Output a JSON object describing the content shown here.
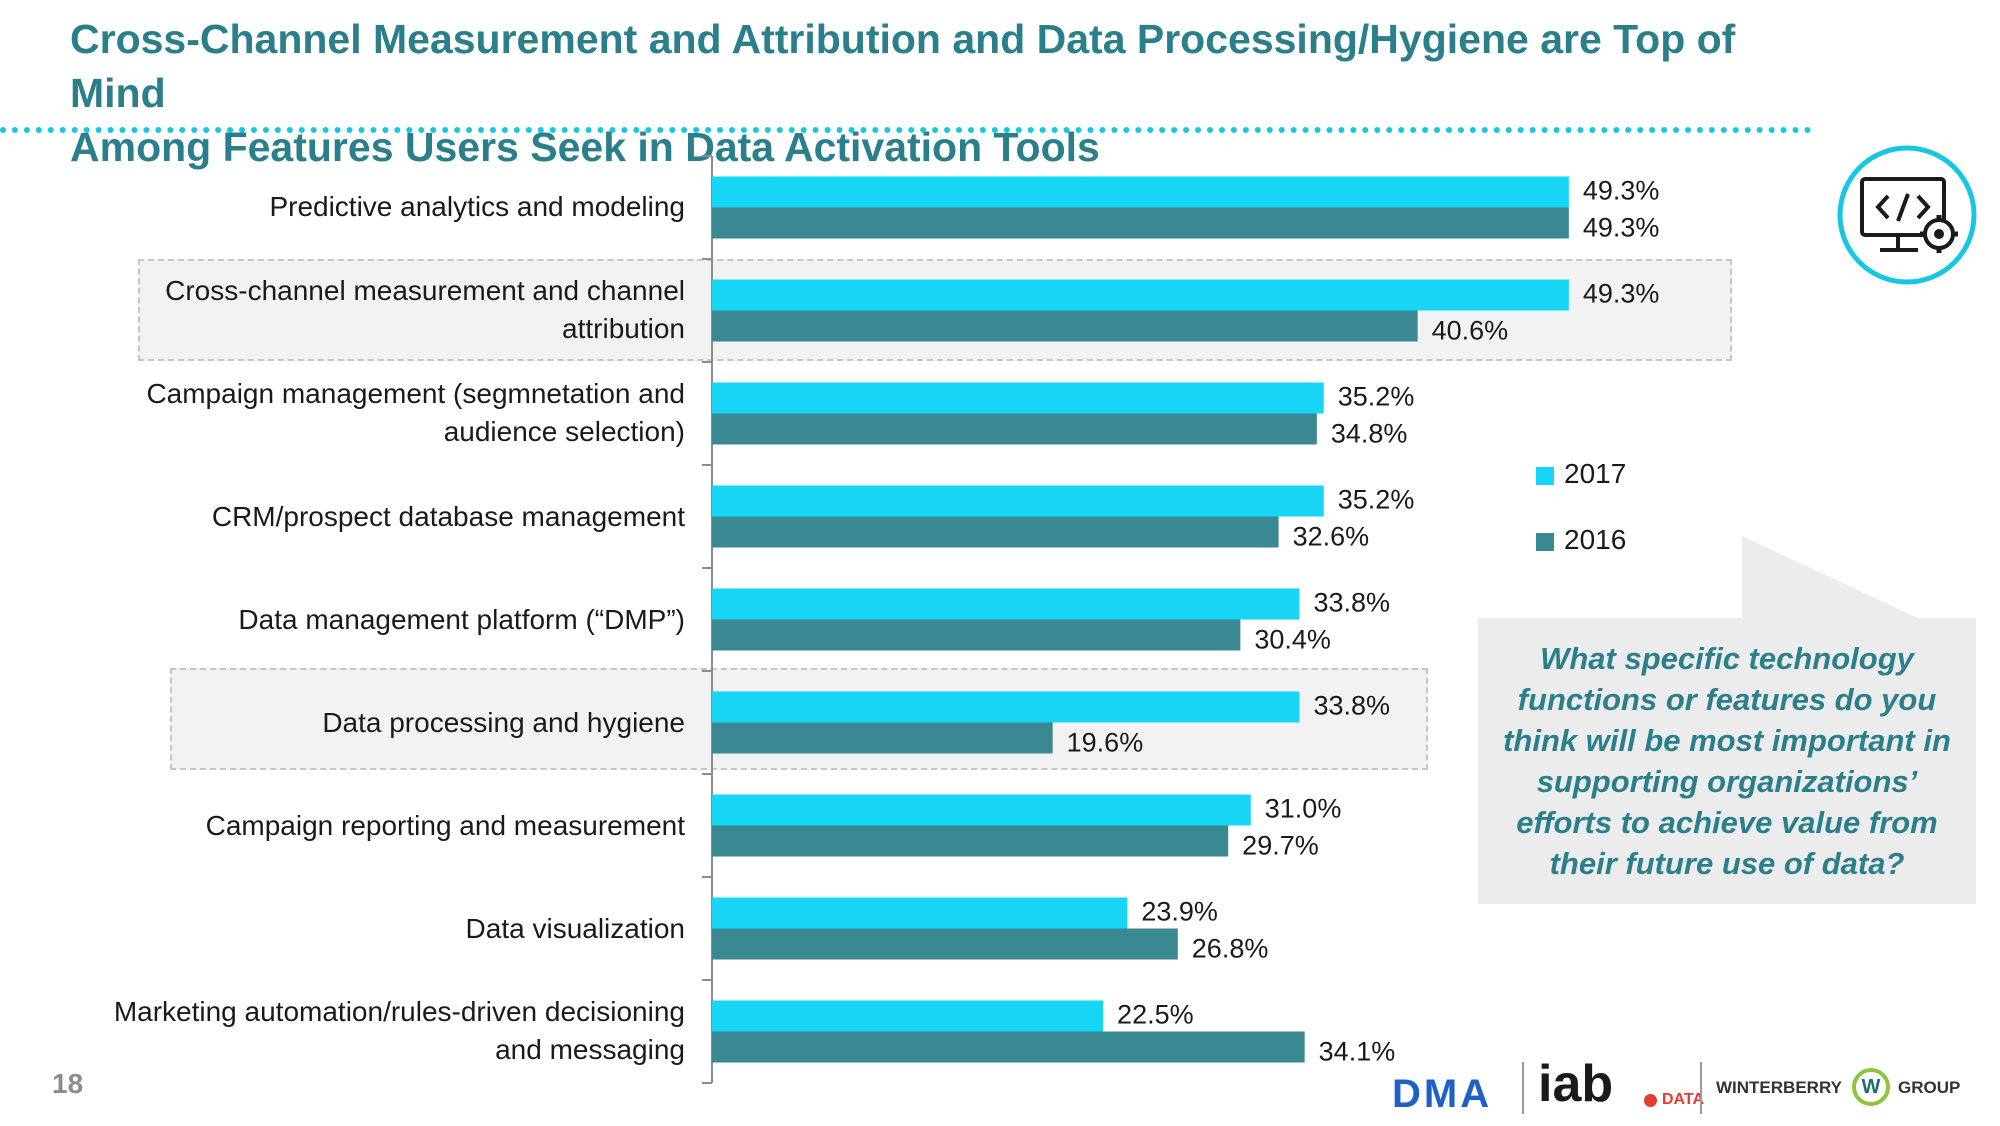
{
  "header": {
    "title_line1": "Cross-Channel Measurement and Attribution and Data Processing/Hygiene are Top of Mind",
    "title_line2": "Among Features Users Seek in Data Activation Tools"
  },
  "colors": {
    "title": "#2b7f8a",
    "series_2017": "#17d5f5",
    "series_2016": "#3a8892",
    "highlight_fill": "#f2f2f2",
    "callout_fill": "#ececec"
  },
  "chart_data": {
    "type": "bar",
    "orientation": "horizontal",
    "categories": [
      [
        "Predictive analytics and modeling"
      ],
      [
        "Cross-channel measurement and channel",
        "attribution"
      ],
      [
        "Campaign management (segmnetation and",
        "audience selection)"
      ],
      [
        "CRM/prospect database management"
      ],
      [
        "Data management platform (“DMP”)"
      ],
      [
        "Data processing and hygiene"
      ],
      [
        "Campaign reporting and measurement"
      ],
      [
        "Data visualization"
      ],
      [
        "Marketing automation/rules-driven decisioning",
        "and messaging"
      ]
    ],
    "series": [
      {
        "name": "2017",
        "values": [
          49.3,
          49.3,
          35.2,
          35.2,
          33.8,
          33.8,
          31.0,
          23.9,
          22.5
        ],
        "labels": [
          "49.3%",
          "49.3%",
          "35.2%",
          "35.2%",
          "33.8%",
          "33.8%",
          "31.0%",
          "23.9%",
          "22.5%"
        ]
      },
      {
        "name": "2016",
        "values": [
          49.3,
          40.6,
          34.8,
          32.6,
          30.4,
          19.6,
          29.7,
          26.8,
          34.1
        ],
        "labels": [
          "49.3%",
          "40.6%",
          "34.8%",
          "32.6%",
          "30.4%",
          "19.6%",
          "29.7%",
          "26.8%",
          "34.1%"
        ]
      }
    ],
    "highlighted_categories": [
      1,
      5
    ],
    "title": "",
    "xlim": [
      0,
      50
    ],
    "legend": {
      "placement": "right"
    }
  },
  "legend": {
    "item_2017": "2017",
    "item_2016": "2016"
  },
  "callout": {
    "question": "What specific technology functions or features do you think will be most important in supporting organizations’ efforts to achieve value from their future use of data?"
  },
  "footer": {
    "page_number": "18",
    "logo_dma": "DMA",
    "logo_iab": "iab",
    "logo_iab_suffix": "DATA",
    "logo_winterberry": "WINTERBERRY",
    "logo_w": "W",
    "logo_group": "GROUP"
  },
  "icons": {
    "monitor": "monitor-code-gear-icon"
  }
}
